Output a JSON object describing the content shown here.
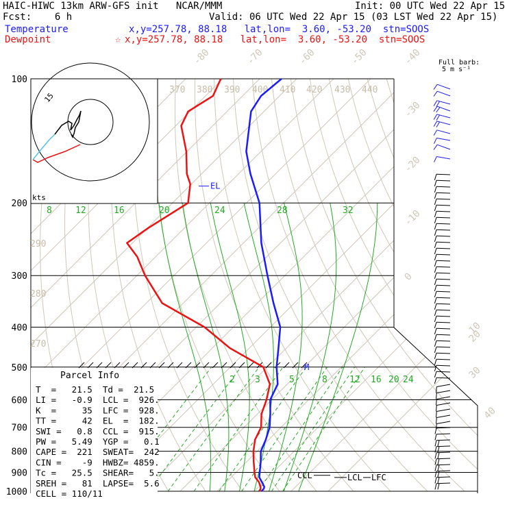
{
  "header": {
    "line1_left": "HAIC-HIWC 13km ARW-GFS init   NCAR/MMM",
    "line1_right": "Init: 00 UTC Wed 22 Apr 15",
    "line2_left": "Fcst:    6 h",
    "line2_right": "Valid: 06 UTC Wed 22 Apr 15 (03 LST Wed 22 Apr 15)",
    "temp_label": "Temperature",
    "temp_info": "x,y=257.78, 88.18   lat,lon=  3.60, -53.20  stn=SOOS",
    "dew_label": "Dewpoint",
    "dew_info": "x,y=257.78, 88.18   lat,lon=  3.60, -53.20  stn=SOOS"
  },
  "barb_legend": {
    "line1": "Full barb:",
    "line2": "5 m s⁻¹"
  },
  "hodograph": {
    "label": "kts",
    "ring_label": "15"
  },
  "chart_data": {
    "type": "line",
    "title": "",
    "pressure_levels": [
      "100",
      "200",
      "300",
      "400",
      "500",
      "600",
      "700",
      "800",
      "900",
      "1000"
    ],
    "isotherm_labels": [
      "-80",
      "-70",
      "-60",
      "-50",
      "-40",
      "-30",
      "-20",
      "-10",
      "0",
      "10",
      "20",
      "30",
      "40"
    ],
    "dry_adiabat_labels": [
      "370",
      "380",
      "390",
      "400",
      "410",
      "420",
      "430",
      "440",
      "290",
      "280",
      "270"
    ],
    "mixing_ratio_labels_upper": [
      "8",
      "12",
      "16",
      "20",
      "24",
      "28",
      "32"
    ],
    "mixing_ratio_labels_lower": [
      "2",
      "3",
      "5",
      "8",
      "12",
      "16",
      "20",
      "24"
    ],
    "series": [
      {
        "name": "Temperature",
        "color": "#1a1aff",
        "p": [
          1000,
          985,
          975,
          950,
          925,
          900,
          850,
          800,
          750,
          700,
          650,
          600,
          550,
          500,
          450,
          400,
          350,
          300,
          250,
          200,
          170,
          150,
          120,
          110,
          100
        ],
        "t": [
          22.0,
          21.9,
          21.5,
          19.6,
          17.6,
          16.4,
          13.9,
          11.0,
          9.2,
          6.9,
          3.5,
          -0.4,
          -2.6,
          -7.5,
          -12.1,
          -17.3,
          -25.6,
          -34.7,
          -45.2,
          -56.5,
          -66.8,
          -74.0,
          -83.5,
          -85.0,
          -84.1
        ]
      },
      {
        "name": "Dewpoint",
        "color": "#ee1111",
        "p": [
          1000,
          985,
          975,
          950,
          925,
          900,
          850,
          800,
          750,
          700,
          650,
          600,
          550,
          500,
          450,
          400,
          350,
          300,
          270,
          250,
          230,
          200,
          180,
          170,
          150,
          130,
          120,
          110,
          100
        ],
        "t": [
          21.5,
          21.0,
          20.5,
          18.8,
          16.5,
          15.0,
          12.0,
          9.0,
          6.3,
          4.6,
          1.1,
          -1.4,
          -4.7,
          -11.1,
          -25.2,
          -37.8,
          -55.7,
          -67.8,
          -75.0,
          -81.5,
          -79.8,
          -75.8,
          -80.3,
          -84.0,
          -90.2,
          -98.5,
          -100.5,
          -98.0,
          -100.5
        ]
      }
    ],
    "annotations": [
      "EL",
      "M",
      "CCL",
      "LCL",
      "LFC"
    ]
  },
  "parcel_info": {
    "title": "Parcel Info",
    "rows": [
      "T  =   21.5  Td =  21.5",
      "LI =   -0.9  LCL =  926.",
      "K  =     35  LFC =  928.",
      "TT =     42  EL  =  182.",
      "SWI =   0.8  CCL =  915.",
      "PW =   5.49  YGP =   0.1",
      "CAPE =  221  SWEAT=  242",
      "CIN =    -9  HWBZ= 4859.",
      "Tc =   25.5  SHEAR=   5.",
      "SREH =   81  LAPSE=  5.6",
      "CELL = 110/11"
    ]
  }
}
